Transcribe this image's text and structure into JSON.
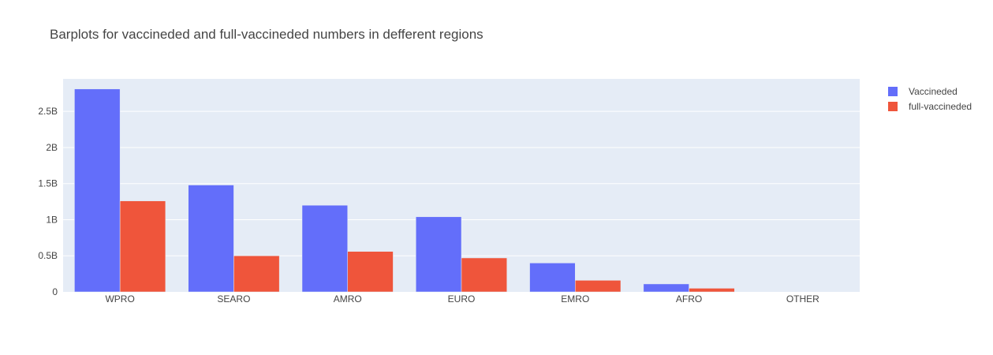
{
  "chart_data": {
    "type": "bar",
    "title": "Barplots for vaccineded and full-vaccineded numbers in defferent regions",
    "xlabel": "",
    "ylabel": "",
    "categories": [
      "WPRO",
      "SEARO",
      "AMRO",
      "EURO",
      "EMRO",
      "AFRO",
      "OTHER"
    ],
    "series": [
      {
        "name": "Vaccineded",
        "color": "#636efa",
        "values": [
          2.81,
          1.48,
          1.2,
          1.04,
          0.4,
          0.11,
          0.0
        ]
      },
      {
        "name": "full-vaccineded",
        "color": "#ef553b",
        "values": [
          1.26,
          0.5,
          0.56,
          0.47,
          0.16,
          0.05,
          0.0
        ]
      }
    ],
    "value_unit": "billions",
    "ylim": [
      0,
      2.95
    ],
    "yticks": [
      0,
      0.5,
      1,
      1.5,
      2,
      2.5
    ],
    "ytick_labels": [
      "0",
      "0.5B",
      "1B",
      "1.5B",
      "2B",
      "2.5B"
    ],
    "grid": true,
    "legend_position": "top-right",
    "plot_background": "#e5ecf6"
  }
}
